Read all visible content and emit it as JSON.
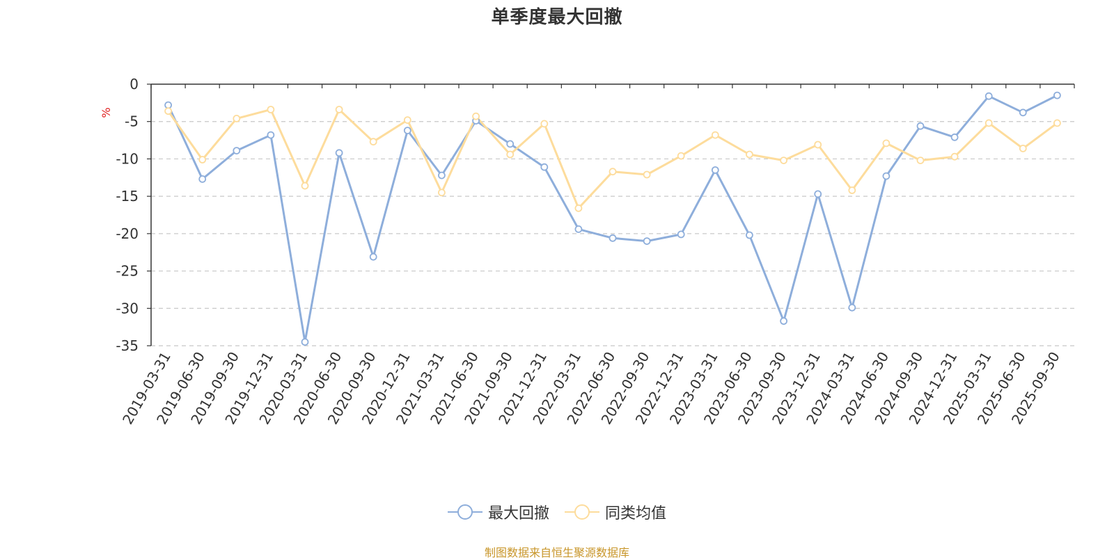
{
  "chart_data": {
    "type": "line",
    "title": "单季度最大回撤",
    "ylabel": "%",
    "xlabel": "",
    "ylim": [
      -35,
      0
    ],
    "yticks": [
      0,
      -5,
      -10,
      -15,
      -20,
      -25,
      -30,
      -35
    ],
    "grid": true,
    "legend_position": "bottom",
    "x": [
      "2019-03-31",
      "2019-06-30",
      "2019-09-30",
      "2019-12-31",
      "2020-03-31",
      "2020-06-30",
      "2020-09-30",
      "2020-12-31",
      "2021-03-31",
      "2021-06-30",
      "2021-09-30",
      "2021-12-31",
      "2022-03-31",
      "2022-06-30",
      "2022-09-30",
      "2022-12-31",
      "2023-03-31",
      "2023-06-30",
      "2023-09-30",
      "2023-12-31",
      "2024-03-31",
      "2024-06-30",
      "2024-09-30",
      "2024-12-31",
      "2025-03-31",
      "2025-06-30",
      "2025-09-30"
    ],
    "series": [
      {
        "name": "最大回撤",
        "color": "#8eaedb",
        "values": [
          -2.8,
          -12.7,
          -8.9,
          -6.8,
          -34.5,
          -9.2,
          -23.1,
          -6.2,
          -12.2,
          -4.9,
          -8.0,
          -11.1,
          -19.4,
          -20.6,
          -21.0,
          -20.1,
          -11.5,
          -20.2,
          -31.7,
          -14.7,
          -29.9,
          -12.3,
          -5.6,
          -7.1,
          -1.6,
          -3.8,
          -1.5
        ]
      },
      {
        "name": "同类均值",
        "color": "#fddc9c",
        "values": [
          -3.6,
          -10.1,
          -4.6,
          -3.4,
          -13.6,
          -3.4,
          -7.7,
          -4.8,
          -14.5,
          -4.3,
          -9.4,
          -5.3,
          -16.6,
          -11.7,
          -12.1,
          -9.6,
          -6.8,
          -9.4,
          -10.2,
          -8.1,
          -14.2,
          -7.9,
          -10.2,
          -9.7,
          -5.2,
          -8.6,
          -5.2
        ]
      }
    ]
  },
  "source_note": "制图数据来自恒生聚源数据库"
}
